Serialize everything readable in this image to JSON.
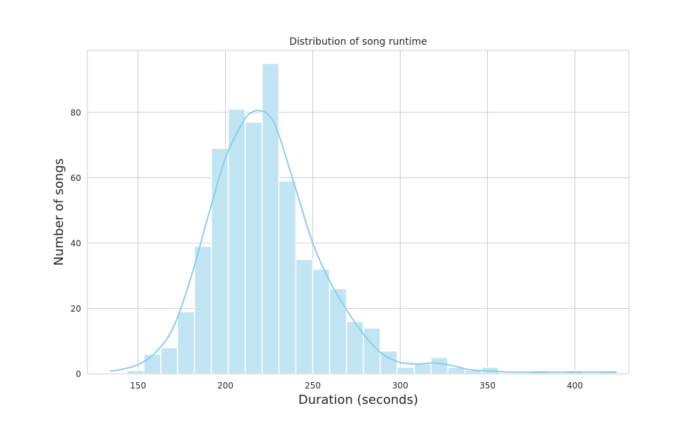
{
  "chart_data": {
    "type": "bar",
    "title": "Distribution of song runtime",
    "xlabel": "Duration (seconds)",
    "ylabel": "Number of songs",
    "xlim": [
      121,
      431
    ],
    "ylim": [
      0,
      99
    ],
    "xticks": [
      150,
      200,
      250,
      300,
      350,
      400
    ],
    "yticks": [
      0,
      20,
      40,
      60,
      80
    ],
    "bins": [
      {
        "x0": 134,
        "x1": 143.6,
        "count": 0
      },
      {
        "x0": 143.6,
        "x1": 153.3,
        "count": 1
      },
      {
        "x0": 153.3,
        "x1": 163.0,
        "count": 6
      },
      {
        "x0": 163.0,
        "x1": 172.6,
        "count": 8
      },
      {
        "x0": 172.6,
        "x1": 182.3,
        "count": 19
      },
      {
        "x0": 182.3,
        "x1": 192.0,
        "count": 39
      },
      {
        "x0": 192.0,
        "x1": 201.6,
        "count": 69
      },
      {
        "x0": 201.6,
        "x1": 211.3,
        "count": 81
      },
      {
        "x0": 211.3,
        "x1": 221.0,
        "count": 77
      },
      {
        "x0": 221.0,
        "x1": 230.6,
        "count": 95
      },
      {
        "x0": 230.6,
        "x1": 240.3,
        "count": 59
      },
      {
        "x0": 240.3,
        "x1": 250.0,
        "count": 35
      },
      {
        "x0": 250.0,
        "x1": 259.6,
        "count": 32
      },
      {
        "x0": 259.6,
        "x1": 269.3,
        "count": 26
      },
      {
        "x0": 269.3,
        "x1": 279.0,
        "count": 16
      },
      {
        "x0": 279.0,
        "x1": 288.6,
        "count": 14
      },
      {
        "x0": 288.6,
        "x1": 298.3,
        "count": 7
      },
      {
        "x0": 298.3,
        "x1": 308.0,
        "count": 2
      },
      {
        "x0": 308.0,
        "x1": 317.6,
        "count": 3
      },
      {
        "x0": 317.6,
        "x1": 327.3,
        "count": 5
      },
      {
        "x0": 327.3,
        "x1": 337.0,
        "count": 2
      },
      {
        "x0": 337.0,
        "x1": 346.6,
        "count": 1
      },
      {
        "x0": 346.6,
        "x1": 356.3,
        "count": 2
      },
      {
        "x0": 356.3,
        "x1": 366.0,
        "count": 0
      },
      {
        "x0": 366.0,
        "x1": 375.6,
        "count": 0
      },
      {
        "x0": 375.6,
        "x1": 385.3,
        "count": 1
      },
      {
        "x0": 385.3,
        "x1": 395.0,
        "count": 0
      },
      {
        "x0": 395.0,
        "x1": 404.6,
        "count": 1
      },
      {
        "x0": 404.6,
        "x1": 414.3,
        "count": 0
      },
      {
        "x0": 414.3,
        "x1": 424.0,
        "count": 1
      }
    ],
    "kde": {
      "x": [
        134,
        140,
        150,
        160,
        170,
        180,
        190,
        200,
        210,
        215,
        220,
        225,
        230,
        240,
        250,
        260,
        270,
        280,
        290,
        300,
        310,
        320,
        330,
        340,
        350,
        360,
        370,
        380,
        390,
        400,
        410,
        424
      ],
      "y": [
        0.8,
        1.3,
        2.8,
        6.5,
        14,
        29,
        48,
        66,
        77,
        80,
        80.5,
        79,
        74,
        57,
        40,
        28,
        19,
        11.5,
        6,
        3.5,
        3,
        3.3,
        2.5,
        1.2,
        0.9,
        0.6,
        0.5,
        0.5,
        0.5,
        0.5,
        0.5,
        0.5
      ]
    },
    "grid": true,
    "legend": "none",
    "colors": {
      "bar_fill": "#c2e5f3",
      "bar_edge": "#ffffff",
      "kde_line": "#87ceeb",
      "grid": "#cccccc",
      "axes_edge": "#cccccc"
    }
  }
}
